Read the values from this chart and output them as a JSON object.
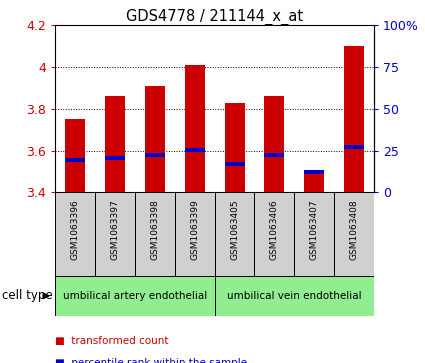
{
  "title": "GDS4778 / 211144_x_at",
  "samples": [
    "GSM1063396",
    "GSM1063397",
    "GSM1063398",
    "GSM1063399",
    "GSM1063405",
    "GSM1063406",
    "GSM1063407",
    "GSM1063408"
  ],
  "bar_bottoms": [
    3.4,
    3.4,
    3.4,
    3.4,
    3.4,
    3.4,
    3.4,
    3.4
  ],
  "bar_tops": [
    3.75,
    3.86,
    3.91,
    4.01,
    3.83,
    3.86,
    3.5,
    4.1
  ],
  "percentile_values": [
    3.555,
    3.565,
    3.578,
    3.602,
    3.535,
    3.578,
    3.497,
    3.618
  ],
  "bar_color": "#cc0000",
  "percentile_color": "#0000cc",
  "ylim_left": [
    3.4,
    4.2
  ],
  "ylim_right": [
    0,
    100
  ],
  "yticks_left": [
    3.4,
    3.6,
    3.8,
    4.0,
    4.2
  ],
  "yticks_right": [
    0,
    25,
    50,
    75,
    100
  ],
  "ytick_labels_left": [
    "3.4",
    "3.6",
    "3.8",
    "4",
    "4.2"
  ],
  "ytick_labels_right": [
    "0",
    "25",
    "50",
    "75",
    "100%"
  ],
  "cell_type_groups": [
    {
      "label": "umbilical artery endothelial",
      "start": 0,
      "end": 4,
      "color": "#90ee90"
    },
    {
      "label": "umbilical vein endothelial",
      "start": 4,
      "end": 8,
      "color": "#90ee90"
    }
  ],
  "cell_type_label": "cell type",
  "legend_items": [
    {
      "color": "#cc0000",
      "label": "transformed count"
    },
    {
      "color": "#0000cc",
      "label": "percentile rank within the sample"
    }
  ],
  "bar_width": 0.5,
  "ylabel_left_color": "#cc0000",
  "ylabel_right_color": "#0000cc",
  "gray_box_color": "#d0d0d0",
  "green_box_color": "#90ee90"
}
